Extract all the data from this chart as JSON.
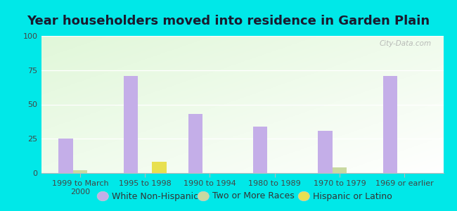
{
  "title": "Year householders moved into residence in Garden Plain",
  "categories": [
    "1999 to March\n2000",
    "1995 to 1998",
    "1990 to 1994",
    "1980 to 1989",
    "1970 to 1979",
    "1969 or earlier"
  ],
  "series": {
    "White Non-Hispanic": [
      25,
      71,
      43,
      34,
      31,
      71
    ],
    "Two or More Races": [
      2,
      0,
      0,
      0,
      4,
      0
    ],
    "Hispanic or Latino": [
      0,
      8,
      0,
      0,
      0,
      0
    ]
  },
  "colors": {
    "White Non-Hispanic": "#c4aee8",
    "Two or More Races": "#c8d9a0",
    "Hispanic or Latino": "#e8e050"
  },
  "ylim": [
    0,
    100
  ],
  "yticks": [
    0,
    25,
    50,
    75,
    100
  ],
  "outer_bg": "#00e8e8",
  "bar_width": 0.22,
  "title_fontsize": 13,
  "legend_fontsize": 9,
  "tick_fontsize": 8,
  "watermark": "City-Data.com",
  "title_color": "#1a1a2e"
}
